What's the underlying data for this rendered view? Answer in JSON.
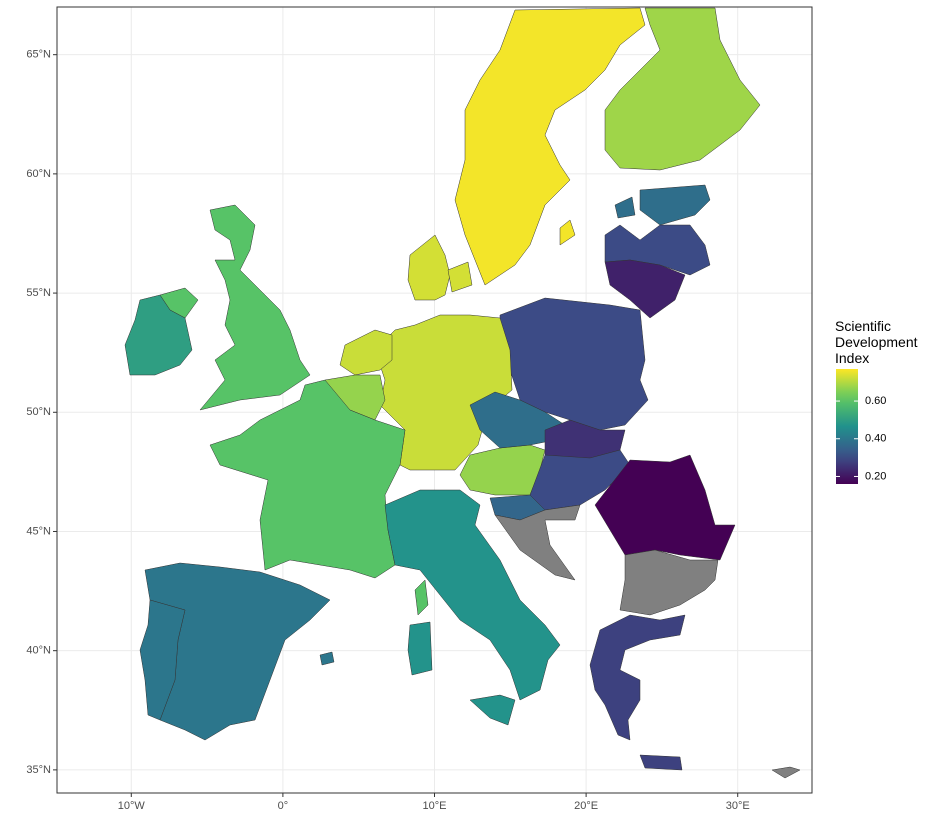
{
  "chart_data": {
    "type": "choropleth",
    "legend_title": "Scientific Development Index",
    "values": [
      0.76,
      0.68,
      0.38,
      0.3,
      0.22,
      0.3,
      0.72,
      0.73,
      0.72,
      0.67,
      0.6,
      0.6,
      0.5,
      0.4,
      0.4,
      0.47,
      0.67,
      0.38,
      0.25,
      0.3,
      0.36,
      null,
      0.16,
      null,
      0.28,
      null
    ],
    "na_color": "#808080",
    "clim": [
      0.16,
      0.77
    ],
    "cticks": [
      {
        "value": 0.2,
        "label": "0.20"
      },
      {
        "value": 0.4,
        "label": "0.40"
      },
      {
        "value": 0.6,
        "label": "0.60"
      }
    ],
    "xlim": [
      -14.9,
      34.9
    ],
    "xticks": [
      {
        "value": -10,
        "label": "10°W"
      },
      {
        "value": 0,
        "label": "0°"
      },
      {
        "value": 10,
        "label": "10°E"
      },
      {
        "value": 20,
        "label": "20°E"
      },
      {
        "value": 30,
        "label": "30°E"
      }
    ],
    "ylim": [
      34.03,
      67.0
    ],
    "yticks": [
      {
        "value": 35,
        "label": "35°N"
      },
      {
        "value": 40,
        "label": "40°N"
      },
      {
        "value": 45,
        "label": "45°N"
      },
      {
        "value": 50,
        "label": "50°N"
      },
      {
        "value": 55,
        "label": "55°N"
      },
      {
        "value": 60,
        "label": "60°N"
      },
      {
        "value": 65,
        "label": "65°N"
      }
    ],
    "grid": true,
    "legend_position": "right"
  }
}
